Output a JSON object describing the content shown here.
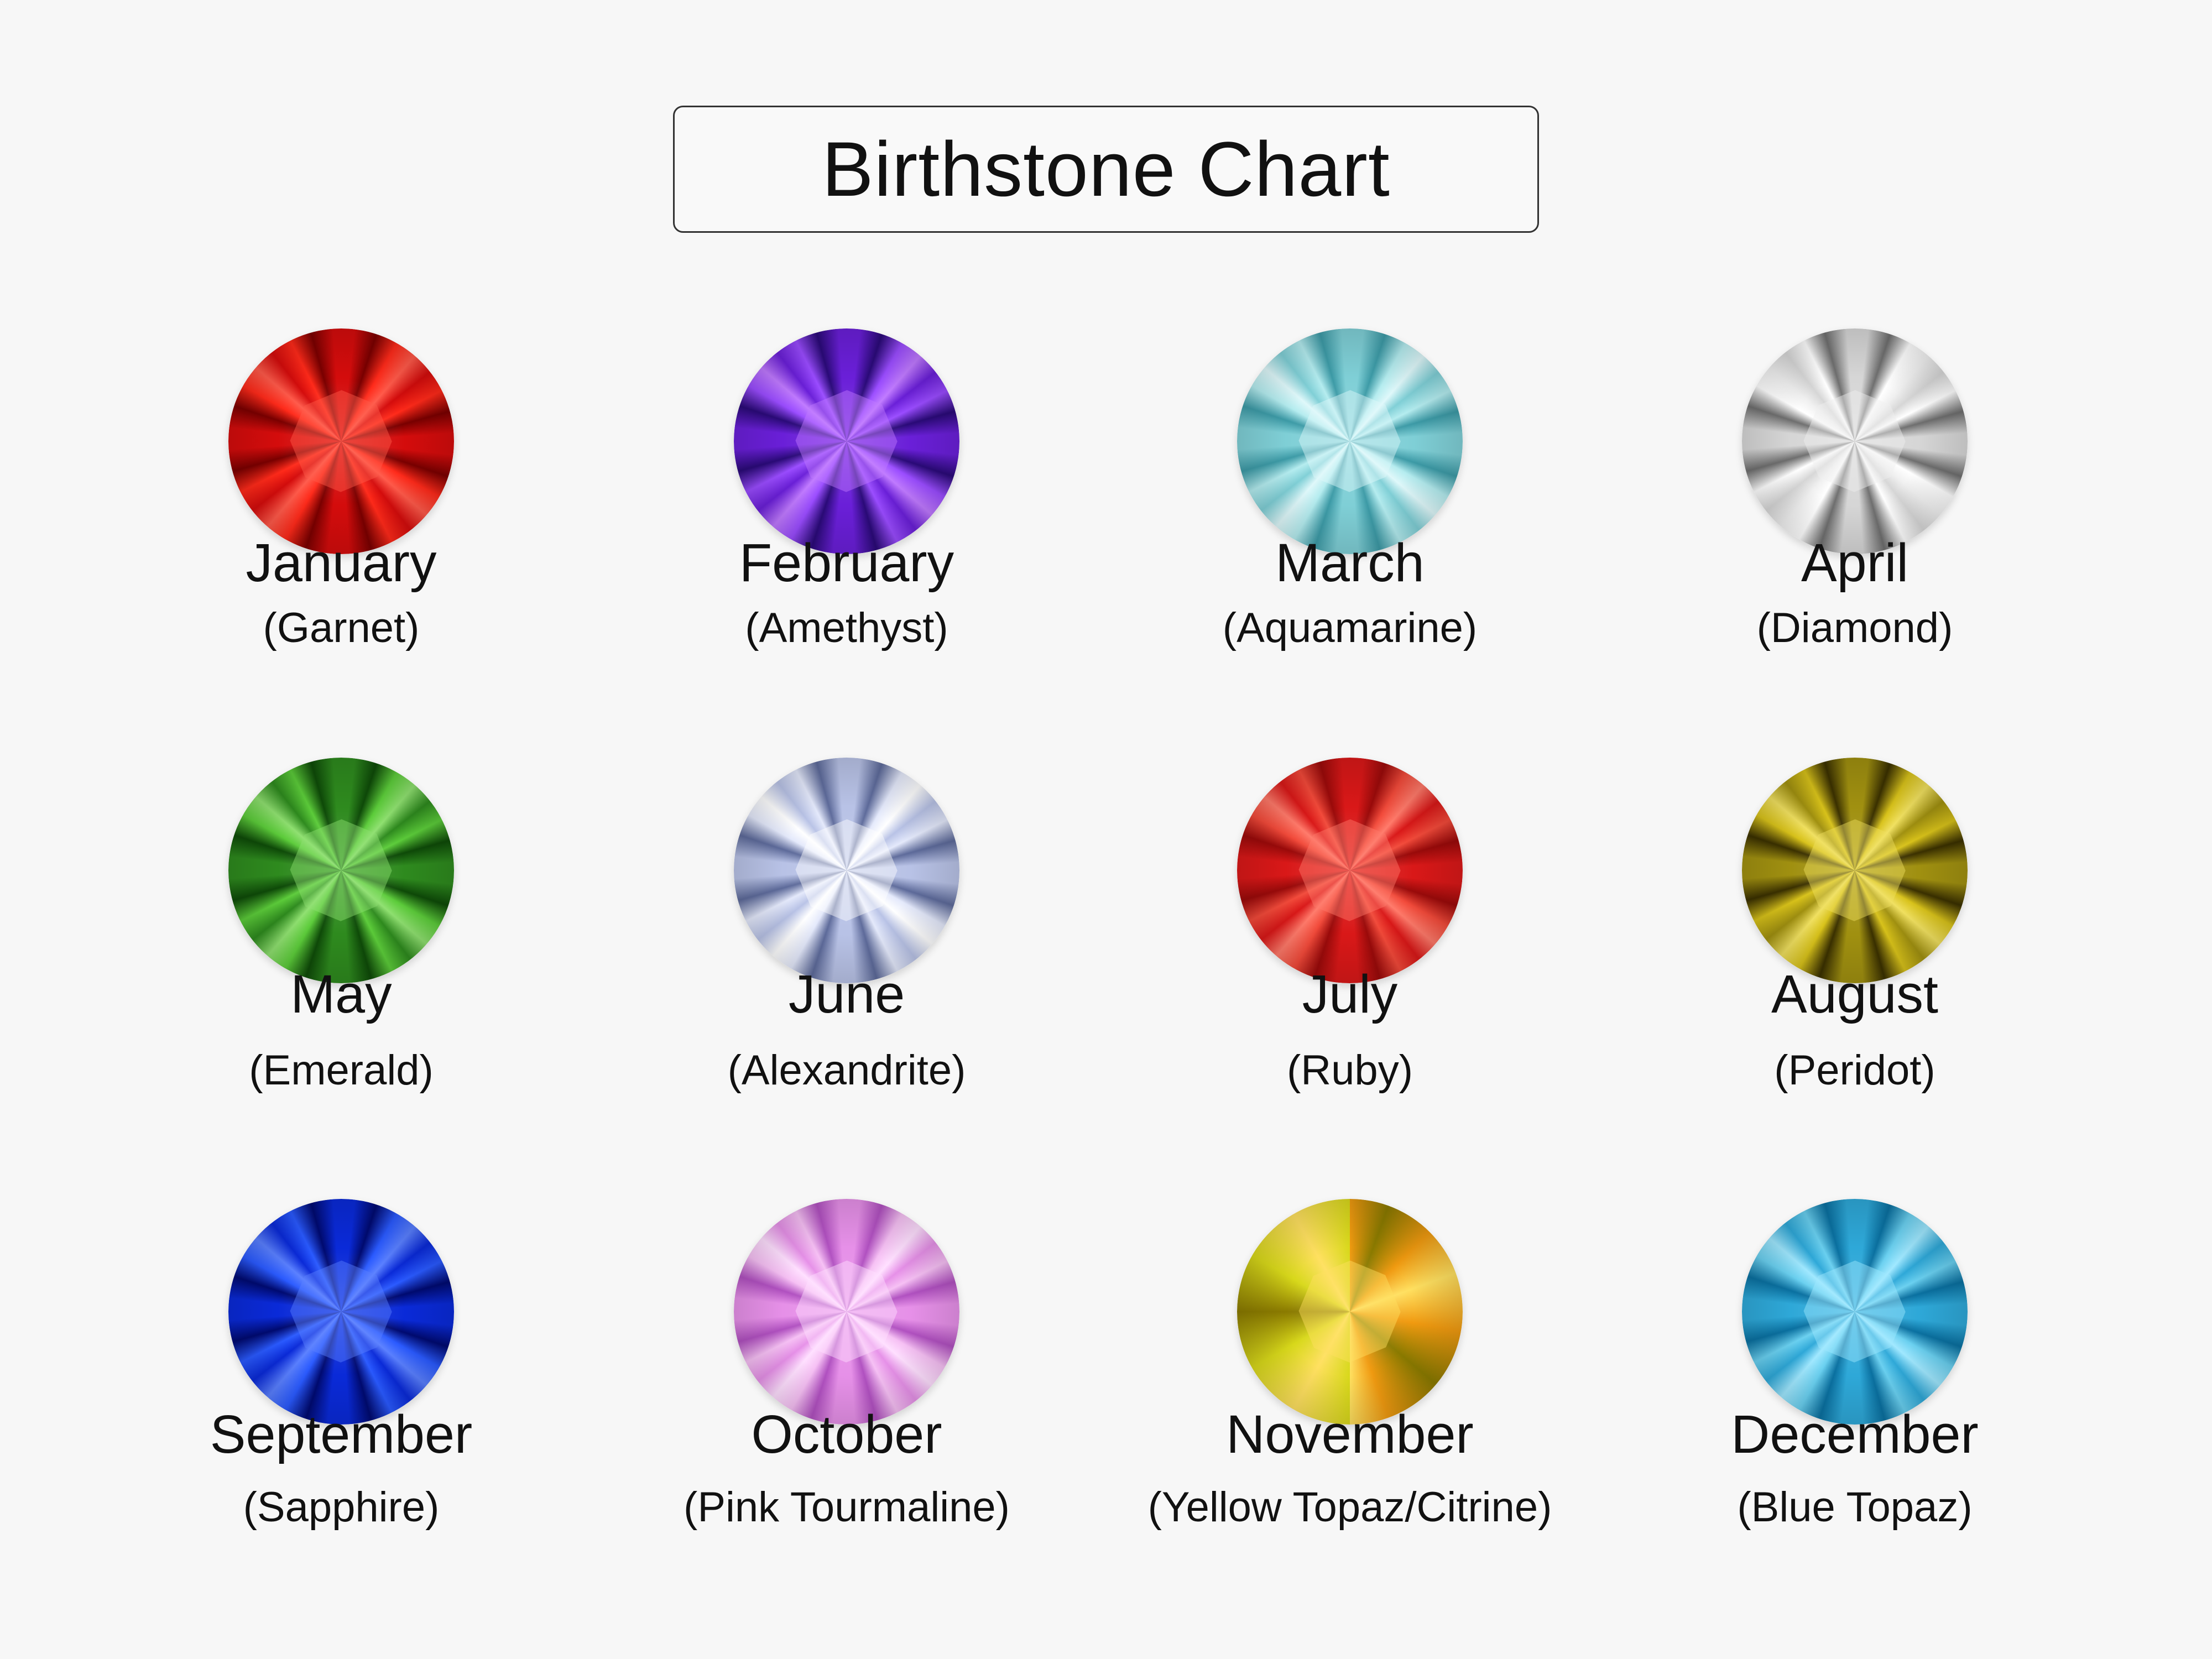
{
  "title": "Birthstone Chart",
  "gems": [
    {
      "month": "January",
      "stone": "(Garnet)",
      "colors": [
        "#d40c0c",
        "#ff2a1a",
        "#7a0000",
        "#ff5a4a"
      ]
    },
    {
      "month": "February",
      "stone": "(Amethyst)",
      "colors": [
        "#6a1fd8",
        "#9a4cff",
        "#2a0a78",
        "#c07aff"
      ]
    },
    {
      "month": "March",
      "stone": "(Aquamarine)",
      "colors": [
        "#7fcfd6",
        "#b4ecef",
        "#3c9aa6",
        "#dff8fa"
      ]
    },
    {
      "month": "April",
      "stone": "(Diamond)",
      "colors": [
        "#d6d6d6",
        "#ffffff",
        "#6e6e6e",
        "#f0f0f0"
      ]
    },
    {
      "month": "May",
      "stone": "(Emerald)",
      "colors": [
        "#2e8a1e",
        "#5ccc3a",
        "#0e4a08",
        "#8fe070"
      ]
    },
    {
      "month": "June",
      "stone": "(Alexandrite)",
      "colors": [
        "#b8c2e6",
        "#e4e9fb",
        "#5d6a9a",
        "#ffffff"
      ]
    },
    {
      "month": "July",
      "stone": "(Ruby)",
      "colors": [
        "#d91818",
        "#f24a3a",
        "#9a0a0a",
        "#ff7a6a"
      ]
    },
    {
      "month": "August",
      "stone": "(Peridot)",
      "colors": [
        "#a09010",
        "#d8c21a",
        "#3a3000",
        "#f0e060"
      ]
    },
    {
      "month": "September",
      "stone": "(Sapphire)",
      "colors": [
        "#0a2ad8",
        "#2a5aff",
        "#000a70",
        "#5a80ff"
      ]
    },
    {
      "month": "October",
      "stone": "(Pink Tourmaline)",
      "colors": [
        "#e690e8",
        "#f6c0f4",
        "#b050c0",
        "#ffe0ff"
      ]
    },
    {
      "month": "November",
      "stone": "(Yellow Topaz/Citrine)",
      "colors": [
        "#d8d81a",
        "#f09a10",
        "#8a7a00",
        "#ffe060"
      ],
      "two_tone": true
    },
    {
      "month": "December",
      "stone": "(Blue Topaz)",
      "colors": [
        "#2ea8d8",
        "#6ad0f0",
        "#0a70a0",
        "#a0e8ff"
      ]
    }
  ]
}
